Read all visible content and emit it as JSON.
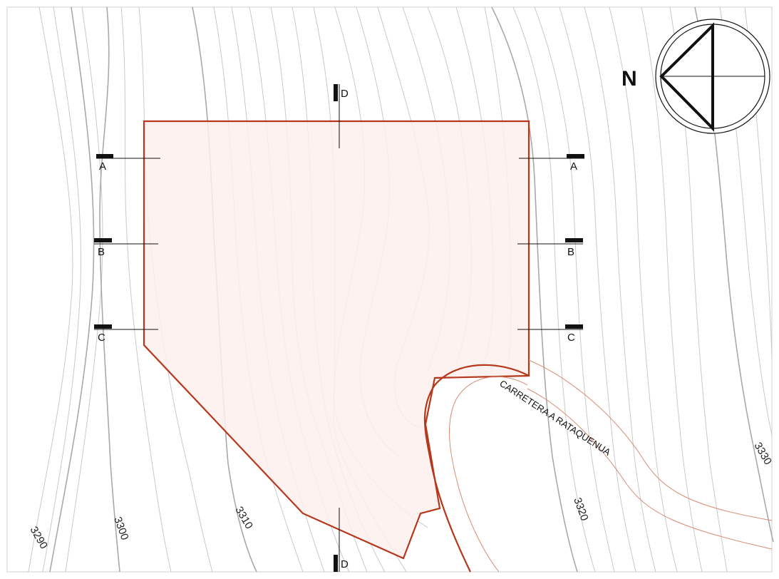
{
  "map": {
    "contour_labels": [
      "3290",
      "3300",
      "3310",
      "3320",
      "3330"
    ],
    "road_label": "CARRETERA A RATAQUENUA",
    "north_label": "N",
    "section_markers": [
      "A",
      "B",
      "C",
      "D"
    ],
    "colors": {
      "lot_outline": "#b5381c",
      "lot_fill": "#fdf0ec",
      "road_line": "#d98c73",
      "contour": "#c9c9c9"
    }
  }
}
